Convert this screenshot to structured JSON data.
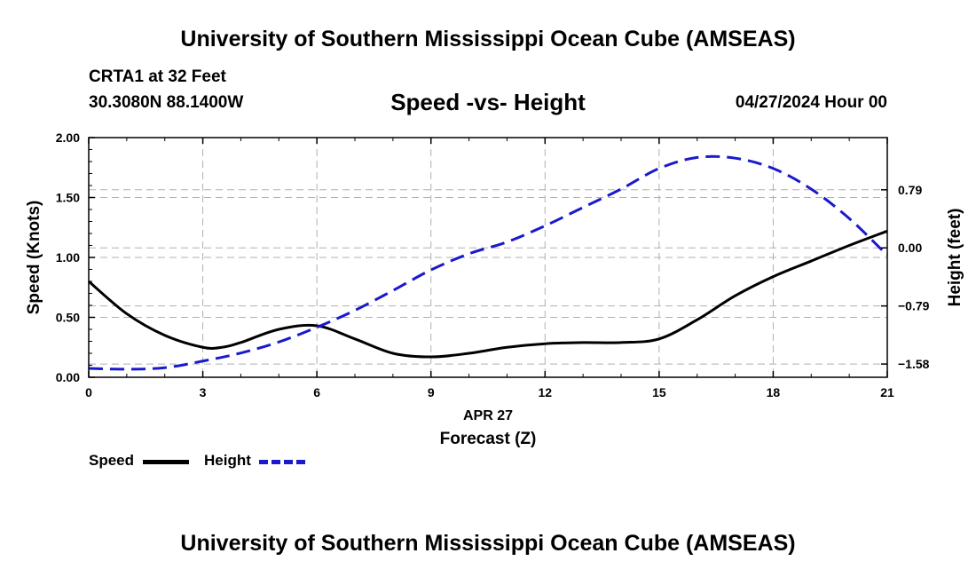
{
  "header": {
    "title": "University of Southern Mississippi Ocean Cube (AMSEAS)",
    "station": "CRTA1 at 32 Feet",
    "coordinates": "30.3080N  88.1400W",
    "subtitle": "Speed -vs- Height",
    "datetime": "04/27/2024 Hour 00"
  },
  "footer": {
    "title": "University of Southern Mississippi Ocean Cube (AMSEAS)"
  },
  "legend": {
    "speed_label": "Speed",
    "height_label": "Height"
  },
  "colors": {
    "speed": "#000000",
    "height": "#1a1acc",
    "grid": "#b0b0b0"
  },
  "chart_data": {
    "type": "line",
    "title": "Speed -vs- Height",
    "xlabel": "Forecast (Z)",
    "xlabel_date": "APR 27",
    "ylabel": "Speed (Knots)",
    "y2label": "Height (feet)",
    "xlim": [
      0,
      21
    ],
    "ylim": [
      0,
      2
    ],
    "y2lim": [
      -1.76,
      1.5
    ],
    "x_ticks": [
      0,
      3,
      6,
      9,
      12,
      15,
      18,
      21
    ],
    "x_tick_labels": [
      "0",
      "3",
      "6",
      "9",
      "12",
      "15",
      "18",
      "21"
    ],
    "y_ticks": [
      0,
      0.5,
      1,
      1.5,
      2
    ],
    "y_tick_labels": [
      "0.00",
      "0.50",
      "1.00",
      "1.50",
      "2.00"
    ],
    "y2_ticks": [
      -1.58,
      -0.79,
      0,
      0.79
    ],
    "y2_tick_labels": [
      "−1.58",
      "−0.79",
      "0.00",
      "0.79"
    ],
    "grid": true,
    "legend_position": "bottom-left",
    "series": [
      {
        "name": "Speed",
        "axis": "left",
        "style": "solid",
        "x": [
          0,
          1,
          2,
          3,
          3.5,
          4,
          5,
          6,
          7,
          8,
          9,
          10,
          11,
          12,
          13,
          14,
          15,
          16,
          17,
          18,
          19,
          20,
          21
        ],
        "y": [
          0.8,
          0.53,
          0.35,
          0.25,
          0.25,
          0.29,
          0.4,
          0.43,
          0.32,
          0.2,
          0.17,
          0.2,
          0.25,
          0.28,
          0.29,
          0.29,
          0.32,
          0.48,
          0.68,
          0.84,
          0.97,
          1.1,
          1.22
        ]
      },
      {
        "name": "Height",
        "axis": "right",
        "style": "dashed",
        "x": [
          0,
          1,
          2,
          3,
          4,
          5,
          6,
          7,
          8,
          9,
          10,
          11,
          12,
          13,
          14,
          15,
          16,
          17,
          18,
          19,
          20,
          21
        ],
        "y": [
          -1.64,
          -1.65,
          -1.63,
          -1.54,
          -1.43,
          -1.28,
          -1.08,
          -0.85,
          -0.58,
          -0.3,
          -0.08,
          0.08,
          0.3,
          0.55,
          0.8,
          1.08,
          1.23,
          1.22,
          1.08,
          0.8,
          0.4,
          -0.1
        ]
      }
    ]
  }
}
